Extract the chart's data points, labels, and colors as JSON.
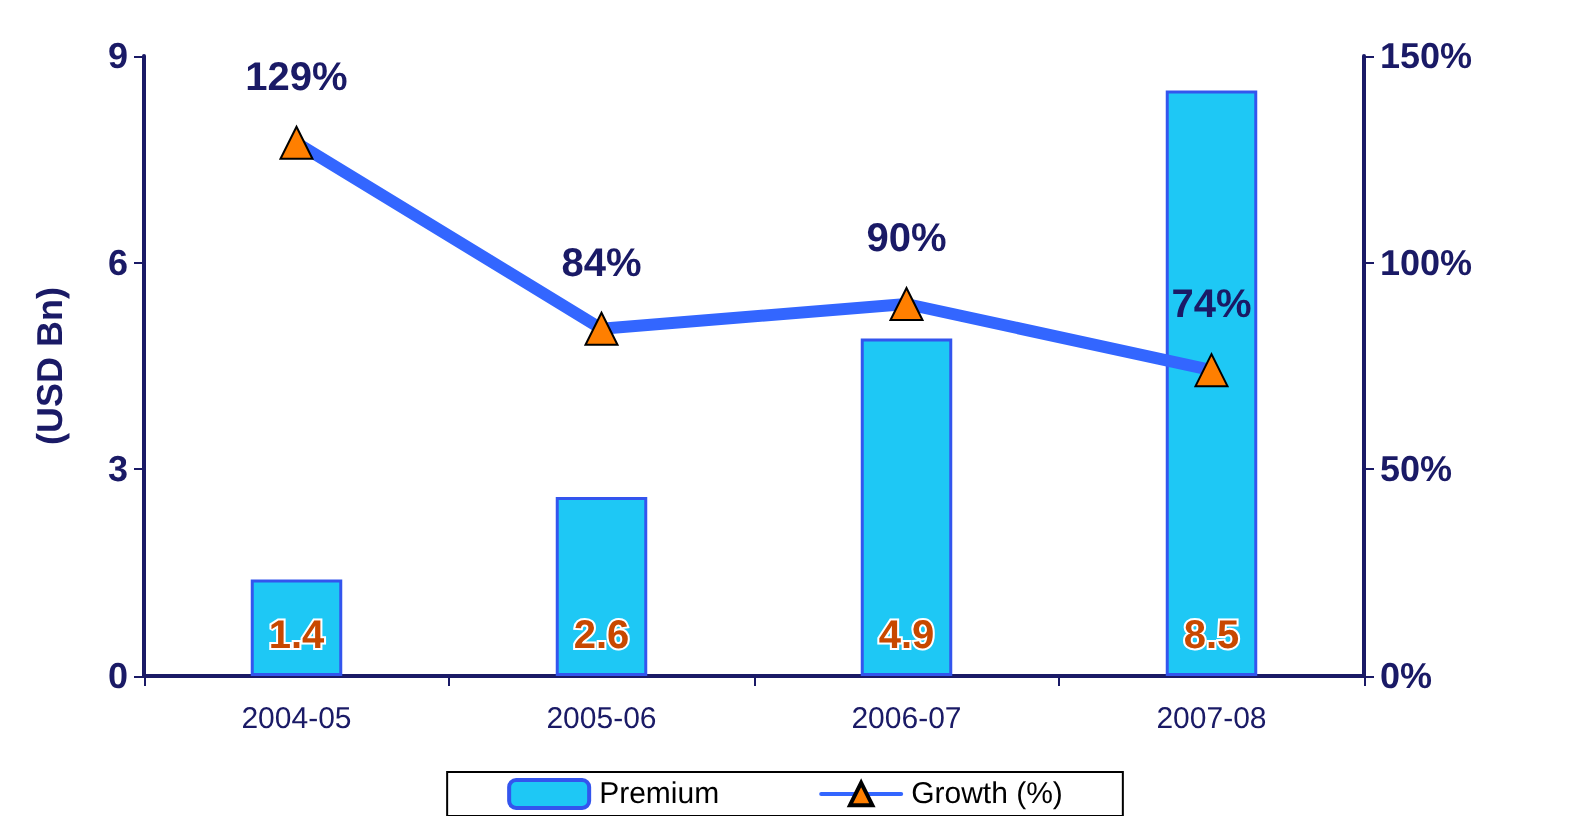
{
  "chart_data": {
    "type": "bar",
    "ylabel": "(USD Bn)",
    "categories": [
      "2004-05",
      "2005-06",
      "2006-07",
      "2007-08"
    ],
    "series": [
      {
        "name": "Premium",
        "color": "#1ec8f5",
        "values": [
          1.4,
          2.6,
          4.9,
          8.5
        ],
        "value_labels": [
          "1.4",
          "2.6",
          "4.9",
          "8.5"
        ]
      },
      {
        "name": "Growth (%)",
        "type": "line",
        "axis": "y2",
        "color": "#3366ff",
        "values": [
          129,
          84,
          90,
          74
        ],
        "value_labels": [
          "129%",
          "84%",
          "90%",
          "74%"
        ]
      }
    ],
    "ylim": [
      0,
      9
    ],
    "yticks": [
      0,
      3,
      6,
      9
    ],
    "y2lim": [
      0,
      150
    ],
    "y2ticks": [
      {
        "value": 0,
        "label": "0%"
      },
      {
        "value": 50,
        "label": "50%"
      },
      {
        "value": 100,
        "label": "100%"
      },
      {
        "value": 150,
        "label": "150%"
      }
    ],
    "grid": false,
    "legend": "bottom",
    "marker": "triangle",
    "line_style": "solid"
  }
}
